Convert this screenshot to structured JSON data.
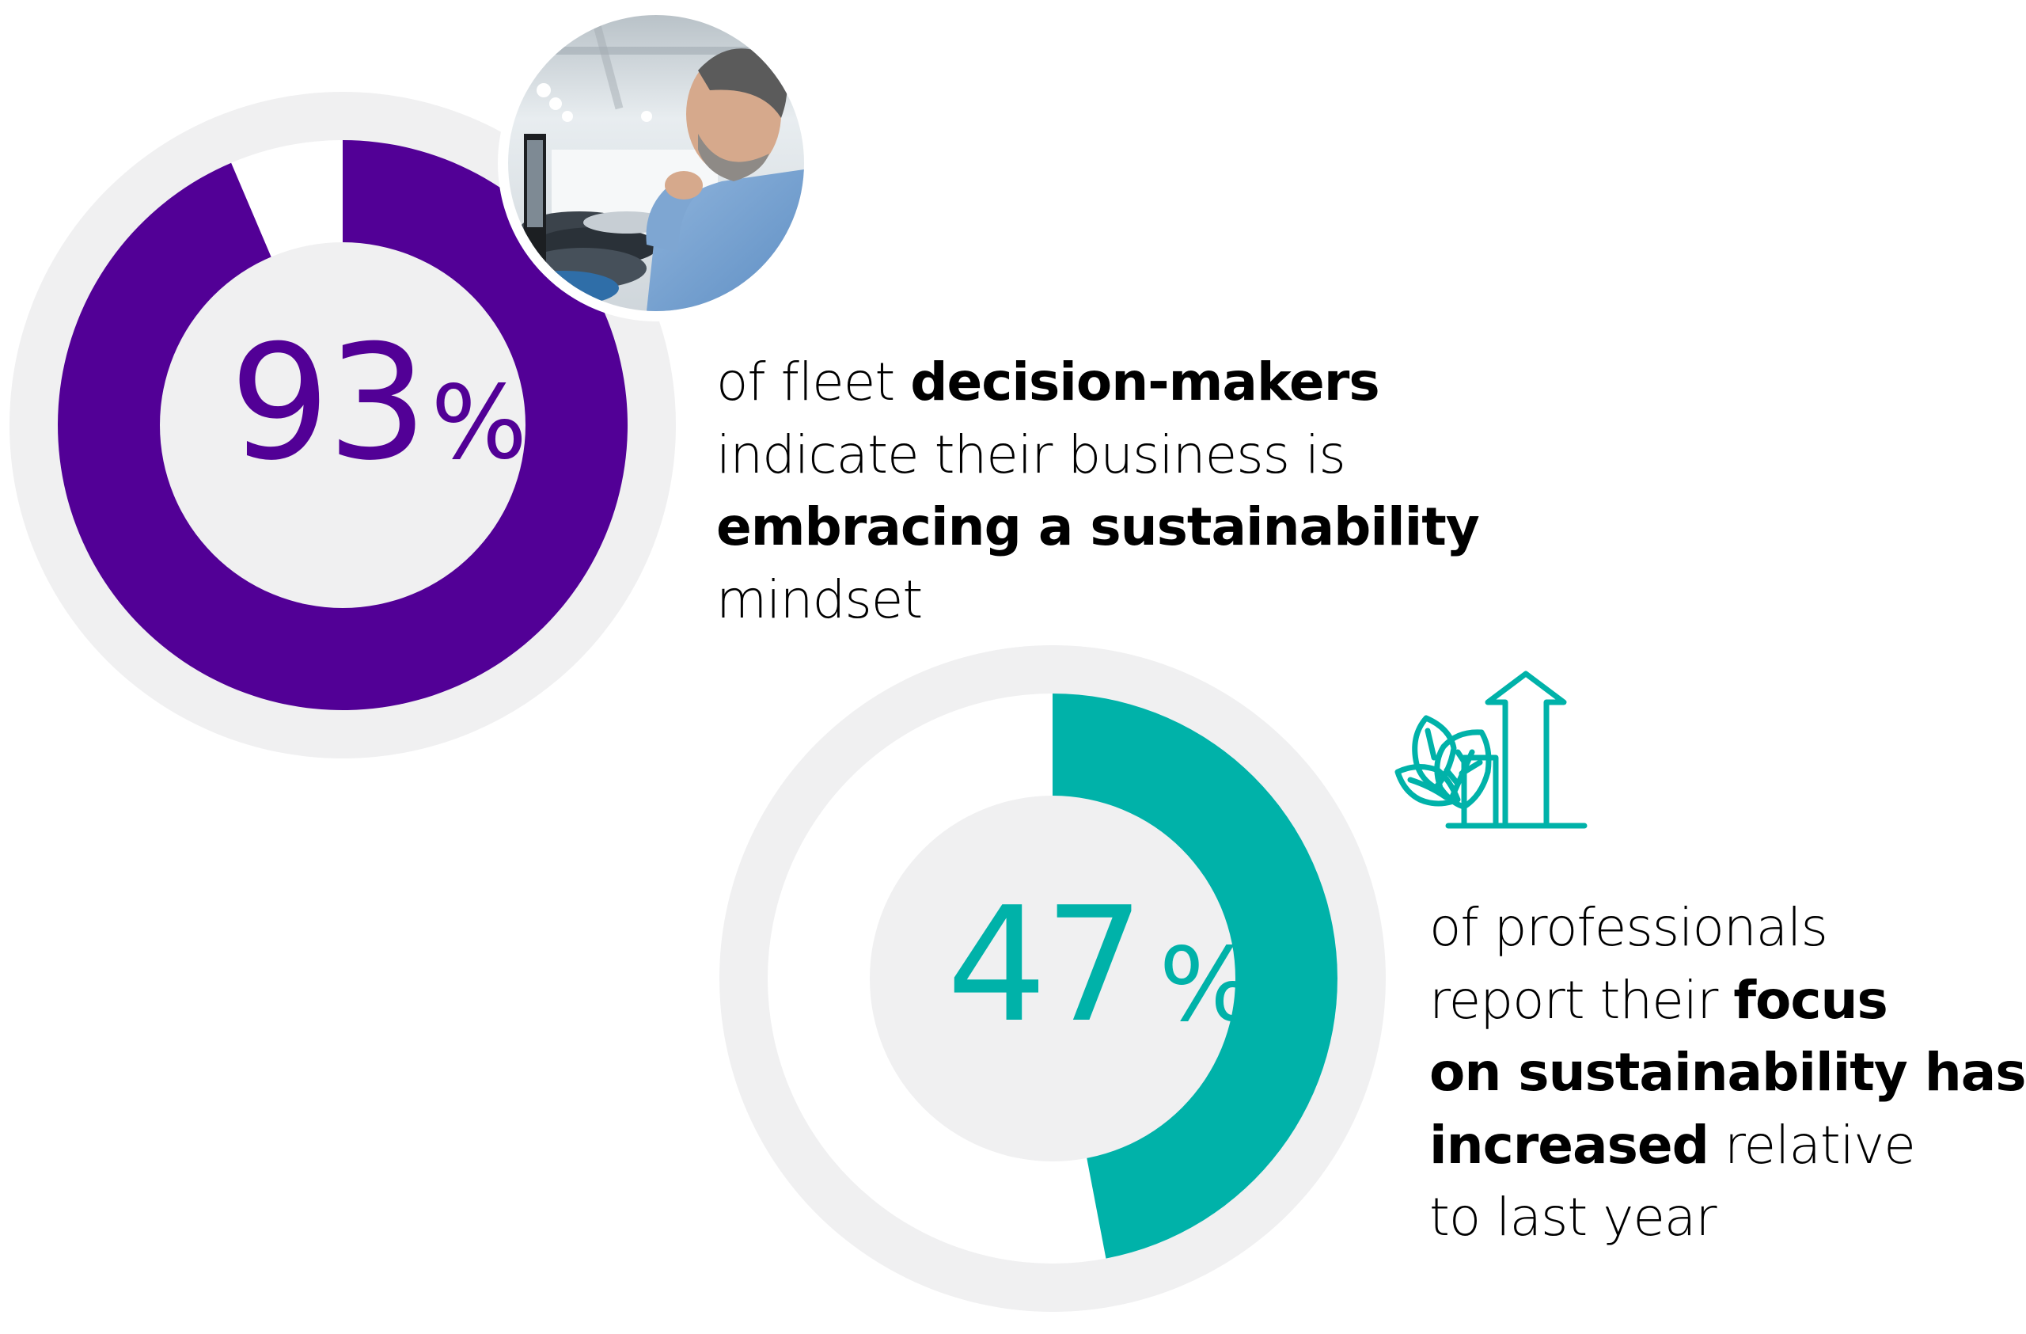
{
  "chart_data": [
    {
      "type": "pie",
      "variant": "donut",
      "title": "",
      "value": 93,
      "unit": "%",
      "label": "93%",
      "values": [
        93,
        7
      ],
      "categories": [
        "fleet decision-makers indicating business is embracing a sustainability mindset",
        "other"
      ],
      "colors": [
        "#520096",
        "#ffffff"
      ],
      "caption": "of fleet decision-makers indicate their business is embracing a sustainability mindset"
    },
    {
      "type": "pie",
      "variant": "donut",
      "title": "",
      "value": 47,
      "unit": "%",
      "label": "47%",
      "values": [
        47,
        53
      ],
      "categories": [
        "professionals reporting increased focus on sustainability relative to last year",
        "other"
      ],
      "colors": [
        "#00B2A9",
        "#ffffff"
      ],
      "caption": "of professionals report their focus on sustainability has increased relative to last year"
    }
  ],
  "colors": {
    "purple": "#520096",
    "teal": "#00B2A9",
    "track_grey": "#F0F0F1",
    "text": "#000000"
  },
  "stat1": {
    "number": "93",
    "percent_sign": "%",
    "caption_lines": [
      [
        {
          "text": "of fleet ",
          "bold": false
        },
        {
          "text": "decision-makers",
          "bold": true
        }
      ],
      [
        {
          "text": "indicate their business is",
          "bold": false
        }
      ],
      [
        {
          "text": "embracing a sustainability",
          "bold": true
        }
      ],
      [
        {
          "text": "mindset",
          "bold": false
        }
      ]
    ],
    "photo": "man-in-car-showroom-photo"
  },
  "stat2": {
    "number": "47",
    "percent_sign": "%",
    "caption_lines": [
      [
        {
          "text": "of professionals",
          "bold": false
        }
      ],
      [
        {
          "text": "report their ",
          "bold": false
        },
        {
          "text": "focus",
          "bold": true
        }
      ],
      [
        {
          "text": "on sustainability has",
          "bold": true
        }
      ],
      [
        {
          "text": "increased",
          "bold": true
        },
        {
          "text": " relative",
          "bold": false
        }
      ],
      [
        {
          "text": "to last year",
          "bold": false
        }
      ]
    ],
    "icon": "leaves-growth-chart-icon"
  }
}
